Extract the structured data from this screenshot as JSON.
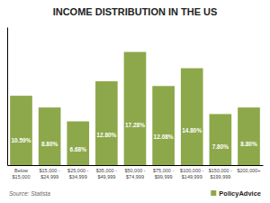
{
  "chart_data": {
    "type": "bar",
    "title": "INCOME DISTRIBUTION IN THE US",
    "categories": [
      "Below\n$15,000",
      "$15,000 -\n$24,999",
      "$25,000 -\n$34,999",
      "$35,000 -\n$49,999",
      "$50,000 -\n$74,999",
      "$75,000 -\n$99,999",
      "$100,000 -\n$149,999",
      "$150,000 -\n$199,999",
      "$200,000+"
    ],
    "values": [
      10.59,
      8.8,
      6.68,
      12.8,
      17.28,
      12.08,
      14.8,
      7.8,
      8.8
    ],
    "value_labels": [
      "10.59%",
      "8.80%",
      "6.68%",
      "12.80%",
      "17.28%",
      "12.08%",
      "14.80%",
      "7.80%",
      "8.80%"
    ],
    "data_labels": true,
    "color": "#8da84a",
    "ylim": [
      0,
      21.0816
    ],
    "tick_labels": "x",
    "grid": false,
    "annotations": [
      "Source: Statista",
      "PolicyAdvice"
    ]
  }
}
